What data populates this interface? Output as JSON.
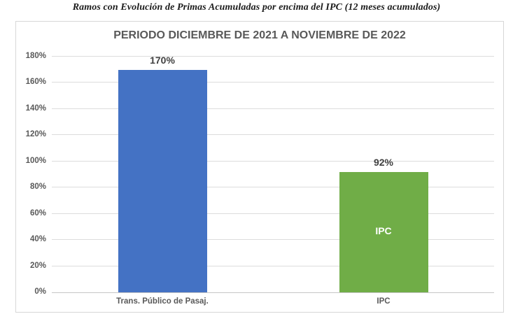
{
  "page_title": "Ramos con Evolución de Primas Acumuladas por encima del IPC (12 meses acumulados)",
  "chart_data": {
    "type": "bar",
    "title": "PERIODO DICIEMBRE DE 2021 A NOVIEMBRE DE 2022",
    "categories": [
      "Trans. Público de Pasaj.",
      "IPC"
    ],
    "values": [
      170,
      92
    ],
    "value_labels": [
      "170%",
      "92%"
    ],
    "inner_labels": [
      "",
      "IPC"
    ],
    "bar_colors": [
      "#4472C4",
      "#70AD47"
    ],
    "xlabel": "",
    "ylabel": "",
    "ylim": [
      0,
      180
    ],
    "ytick_step": 20,
    "yticks": [
      "0%",
      "20%",
      "40%",
      "60%",
      "80%",
      "100%",
      "120%",
      "140%",
      "160%",
      "180%"
    ],
    "grid": true,
    "legend_position": "none"
  },
  "colors": {
    "bar_blue": "#4472C4",
    "bar_green": "#70AD47",
    "gridline": "#dcdcdc",
    "frame_border": "#d7d7d7",
    "axis_text": "#595959",
    "data_label_text": "#404040",
    "heading_text": "#1b1b1b"
  }
}
